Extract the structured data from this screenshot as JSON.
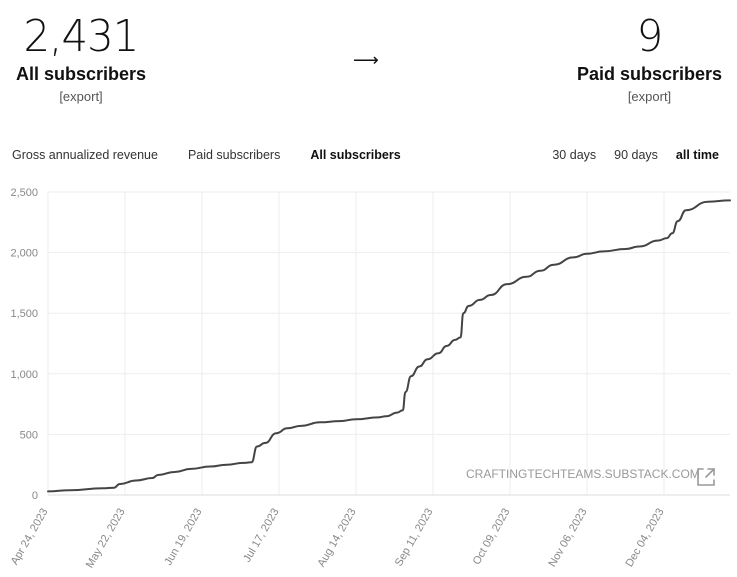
{
  "stats": {
    "all": {
      "value": "2,431",
      "label": "All subscribers",
      "export": "[export]"
    },
    "arrow": "⟶",
    "paid": {
      "value": "9",
      "label": "Paid subscribers",
      "export": "[export]"
    }
  },
  "metric_toggles": [
    {
      "label": "Gross annualized revenue",
      "active": false
    },
    {
      "label": "Paid subscribers",
      "active": false
    },
    {
      "label": "All subscribers",
      "active": true
    }
  ],
  "range_toggles": [
    {
      "label": "30 days",
      "active": false
    },
    {
      "label": "90 days",
      "active": false
    },
    {
      "label": "all time",
      "active": true
    }
  ],
  "watermark": "CRAFTINGTECHTEAMS.SUBSTACK.COM",
  "colors": {
    "line": "#444444",
    "grid": "#eeeeee",
    "axis_text": "#888888"
  },
  "chart_data": {
    "type": "line",
    "title": "",
    "xlabel": "",
    "ylabel": "",
    "ylim": [
      0,
      2500
    ],
    "yticks": [
      0,
      500,
      1000,
      1500,
      2000,
      2500
    ],
    "ytick_labels": [
      "0",
      "500",
      "1,000",
      "1,500",
      "2,000",
      "2,500"
    ],
    "grid": true,
    "legend": "none",
    "xtick_labels": [
      "Apr 24, 2023",
      "May 22, 2023",
      "Jun 19, 2023",
      "Jul 17, 2023",
      "Aug 14, 2023",
      "Sep 11, 2023",
      "Oct 09, 2023",
      "Nov 06, 2023",
      "Dec 04, 2023"
    ],
    "xtick_dates": [
      "2023-04-24",
      "2023-05-22",
      "2023-06-19",
      "2023-07-17",
      "2023-08-14",
      "2023-09-11",
      "2023-10-09",
      "2023-11-06",
      "2023-12-04"
    ],
    "xlim": [
      "2023-04-24",
      "2023-12-28"
    ],
    "series": [
      {
        "x": [
          "2023-04-24",
          "2023-05-02",
          "2023-05-14",
          "2023-05-18",
          "2023-05-20",
          "2023-05-26",
          "2023-06-01",
          "2023-06-03",
          "2023-06-09",
          "2023-06-15",
          "2023-06-22",
          "2023-06-28",
          "2023-07-04",
          "2023-07-07",
          "2023-07-09",
          "2023-07-12",
          "2023-07-16",
          "2023-07-20",
          "2023-07-25",
          "2023-08-01",
          "2023-08-08",
          "2023-08-14",
          "2023-08-22",
          "2023-08-25",
          "2023-08-29",
          "2023-08-31",
          "2023-09-01",
          "2023-09-03",
          "2023-09-06",
          "2023-09-09",
          "2023-09-13",
          "2023-09-16",
          "2023-09-19",
          "2023-09-21",
          "2023-09-22",
          "2023-09-24",
          "2023-09-28",
          "2023-10-02",
          "2023-10-08",
          "2023-10-15",
          "2023-10-20",
          "2023-10-25",
          "2023-11-01",
          "2023-11-06",
          "2023-11-12",
          "2023-11-20",
          "2023-11-25",
          "2023-12-02",
          "2023-12-05",
          "2023-12-07",
          "2023-12-09",
          "2023-12-12",
          "2023-12-20",
          "2023-12-28"
        ],
        "y": [
          30,
          40,
          55,
          60,
          90,
          120,
          140,
          165,
          190,
          215,
          235,
          250,
          265,
          270,
          400,
          430,
          510,
          550,
          570,
          600,
          610,
          625,
          640,
          650,
          680,
          700,
          850,
          980,
          1060,
          1120,
          1170,
          1230,
          1280,
          1300,
          1500,
          1560,
          1610,
          1650,
          1740,
          1800,
          1850,
          1900,
          1960,
          1990,
          2010,
          2030,
          2050,
          2100,
          2120,
          2160,
          2260,
          2350,
          2420,
          2431
        ]
      }
    ]
  }
}
